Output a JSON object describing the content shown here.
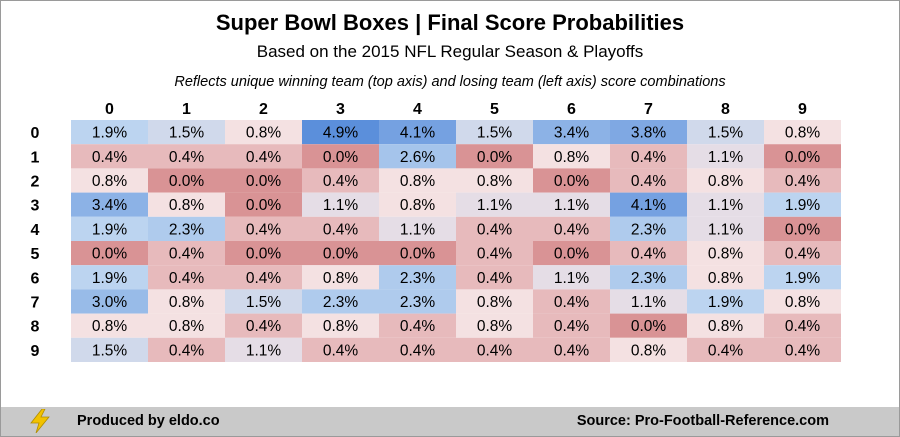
{
  "title": "Super Bowl Boxes | Final Score Probabilities",
  "subtitle": "Based on the 2015 NFL Regular Season & Playoffs",
  "note": "Reflects unique winning team (top axis) and losing team (left axis) score combinations",
  "footer": {
    "left_icon": "lightning-bolt-icon",
    "left_text": "Produced by eldo.co",
    "right_text": "Source: Pro-Football-Reference.com"
  },
  "colors": {
    "high": "#5b8fdb",
    "mid_high": "#bcd4f0",
    "neutral": "#f4e1e2",
    "low": "#d99395",
    "footer_bg": "#c9c9c9",
    "bolt": "#f2c200"
  },
  "chart_data": {
    "type": "heatmap",
    "x_categories": [
      "0",
      "1",
      "2",
      "3",
      "4",
      "5",
      "6",
      "7",
      "8",
      "9"
    ],
    "y_categories": [
      "0",
      "1",
      "2",
      "3",
      "4",
      "5",
      "6",
      "7",
      "8",
      "9"
    ],
    "value_unit": "%",
    "values": [
      [
        1.9,
        1.5,
        0.8,
        4.9,
        4.1,
        1.5,
        3.4,
        3.8,
        1.5,
        0.8
      ],
      [
        0.4,
        0.4,
        0.4,
        0.0,
        2.6,
        0.0,
        0.8,
        0.4,
        1.1,
        0.0
      ],
      [
        0.8,
        0.0,
        0.0,
        0.4,
        0.8,
        0.8,
        0.0,
        0.4,
        0.8,
        0.4
      ],
      [
        3.4,
        0.8,
        0.0,
        1.1,
        0.8,
        1.1,
        1.1,
        4.1,
        1.1,
        1.9
      ],
      [
        1.9,
        2.3,
        0.4,
        0.4,
        1.1,
        0.4,
        0.4,
        2.3,
        1.1,
        0.0
      ],
      [
        0.0,
        0.4,
        0.0,
        0.0,
        0.0,
        0.4,
        0.0,
        0.4,
        0.8,
        0.4
      ],
      [
        1.9,
        0.4,
        0.4,
        0.8,
        2.3,
        0.4,
        1.1,
        2.3,
        0.8,
        1.9
      ],
      [
        3.0,
        0.8,
        1.5,
        2.3,
        2.3,
        0.8,
        0.4,
        1.1,
        1.9,
        0.8
      ],
      [
        0.8,
        0.8,
        0.4,
        0.8,
        0.4,
        0.8,
        0.4,
        0.0,
        0.8,
        0.4
      ],
      [
        1.5,
        0.4,
        1.1,
        0.4,
        0.4,
        0.4,
        0.4,
        0.8,
        0.4,
        0.4
      ]
    ],
    "labels": [
      [
        "1.9%",
        "1.5%",
        "0.8%",
        "4.9%",
        "4.1%",
        "1.5%",
        "3.4%",
        "3.8%",
        "1.5%",
        "0.8%"
      ],
      [
        "0.4%",
        "0.4%",
        "0.4%",
        "0.0%",
        "2.6%",
        "0.0%",
        "0.8%",
        "0.4%",
        "1.1%",
        "0.0%"
      ],
      [
        "0.8%",
        "0.0%",
        "0.0%",
        "0.4%",
        "0.8%",
        "0.8%",
        "0.0%",
        "0.4%",
        "0.8%",
        "0.4%"
      ],
      [
        "3.4%",
        "0.8%",
        "0.0%",
        "1.1%",
        "0.8%",
        "1.1%",
        "1.1%",
        "4.1%",
        "1.1%",
        "1.9%"
      ],
      [
        "1.9%",
        "2.3%",
        "0.4%",
        "0.4%",
        "1.1%",
        "0.4%",
        "0.4%",
        "2.3%",
        "1.1%",
        "0.0%"
      ],
      [
        "0.0%",
        "0.4%",
        "0.0%",
        "0.0%",
        "0.0%",
        "0.4%",
        "0.0%",
        "0.4%",
        "0.8%",
        "0.4%"
      ],
      [
        "1.9%",
        "0.4%",
        "0.4%",
        "0.8%",
        "2.3%",
        "0.4%",
        "1.1%",
        "2.3%",
        "0.8%",
        "1.9%"
      ],
      [
        "3.0%",
        "0.8%",
        "1.5%",
        "2.3%",
        "2.3%",
        "0.8%",
        "0.4%",
        "1.1%",
        "1.9%",
        "0.8%"
      ],
      [
        "0.8%",
        "0.8%",
        "0.4%",
        "0.8%",
        "0.4%",
        "0.8%",
        "0.4%",
        "0.0%",
        "0.8%",
        "0.4%"
      ],
      [
        "1.5%",
        "0.4%",
        "1.1%",
        "0.4%",
        "0.4%",
        "0.4%",
        "0.4%",
        "0.8%",
        "0.4%",
        "0.4%"
      ]
    ]
  }
}
